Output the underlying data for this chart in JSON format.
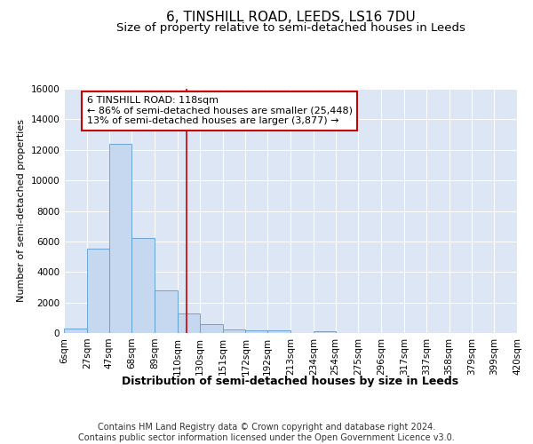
{
  "title1": "6, TINSHILL ROAD, LEEDS, LS16 7DU",
  "title2": "Size of property relative to semi-detached houses in Leeds",
  "xlabel": "Distribution of semi-detached houses by size in Leeds",
  "ylabel": "Number of semi-detached properties",
  "footer": "Contains HM Land Registry data © Crown copyright and database right 2024.\nContains public sector information licensed under the Open Government Licence v3.0.",
  "bin_labels": [
    "6sqm",
    "27sqm",
    "47sqm",
    "68sqm",
    "89sqm",
    "110sqm",
    "130sqm",
    "151sqm",
    "172sqm",
    "192sqm",
    "213sqm",
    "234sqm",
    "254sqm",
    "275sqm",
    "296sqm",
    "317sqm",
    "337sqm",
    "358sqm",
    "379sqm",
    "399sqm",
    "420sqm"
  ],
  "bar_values": [
    300,
    5500,
    12400,
    6200,
    2800,
    1300,
    600,
    250,
    200,
    150,
    0,
    100,
    0,
    0,
    0,
    0,
    0,
    0,
    0,
    0
  ],
  "bin_edges": [
    6,
    27,
    47,
    68,
    89,
    110,
    130,
    151,
    172,
    192,
    213,
    234,
    254,
    275,
    296,
    317,
    337,
    358,
    379,
    399,
    420
  ],
  "bar_color": "#c5d8f0",
  "bar_edge_color": "#5b9bd5",
  "bg_color": "#dce6f4",
  "grid_color": "#ffffff",
  "annotation_box_color": "#cc0000",
  "vline_color": "#cc0000",
  "vline_x": 118,
  "annotation_text": "6 TINSHILL ROAD: 118sqm\n← 86% of semi-detached houses are smaller (25,448)\n13% of semi-detached houses are larger (3,877) →",
  "ylim": [
    0,
    16000
  ],
  "yticks": [
    0,
    2000,
    4000,
    6000,
    8000,
    10000,
    12000,
    14000,
    16000
  ],
  "title1_fontsize": 11,
  "title2_fontsize": 9.5,
  "xlabel_fontsize": 9,
  "ylabel_fontsize": 8,
  "tick_fontsize": 7.5,
  "footer_fontsize": 7,
  "annot_fontsize": 8
}
